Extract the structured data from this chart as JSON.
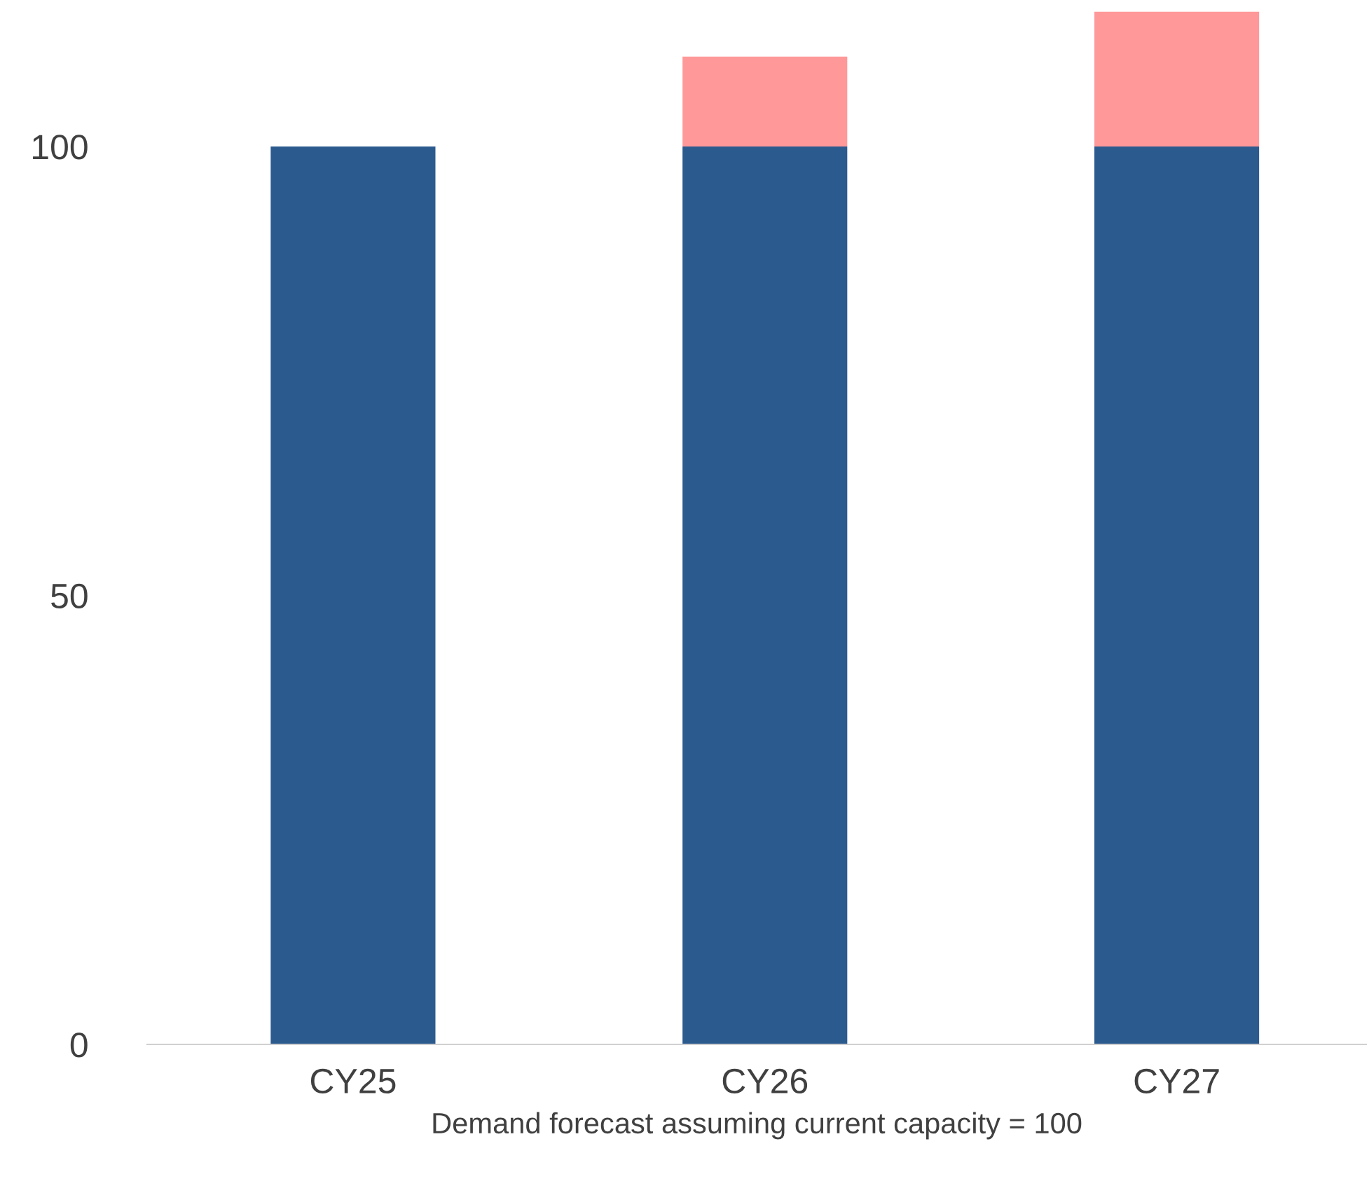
{
  "chart_data": {
    "type": "bar",
    "stacked": true,
    "xlabel": "Demand forecast assuming current capacity = 100",
    "categories": [
      "CY25",
      "CY26",
      "CY27"
    ],
    "series": [
      {
        "color": "#2b5a8e",
        "values": [
          100,
          100,
          100
        ]
      },
      {
        "color": "#ff9999",
        "values": [
          0,
          10,
          15
        ]
      }
    ],
    "ylim": [
      0,
      116
    ],
    "yticks": [
      0,
      50,
      100
    ],
    "grid": false,
    "legend": false
  }
}
